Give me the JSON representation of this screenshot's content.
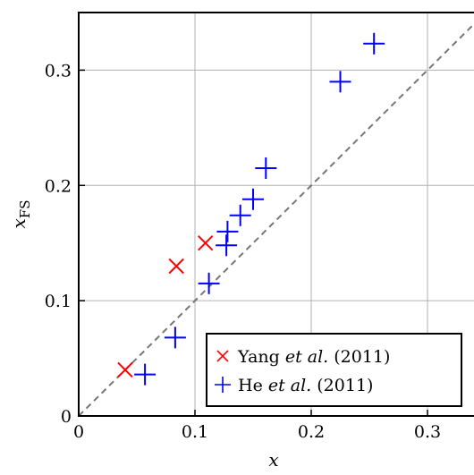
{
  "chart_data": {
    "type": "scatter",
    "xlabel": "x",
    "ylabel_main": "x",
    "ylabel_sub": "FS",
    "xlim": [
      0,
      0.34
    ],
    "ylim": [
      0,
      0.35
    ],
    "x_ticks": [
      {
        "value": 0,
        "label": "0"
      },
      {
        "value": 0.1,
        "label": "0.1"
      },
      {
        "value": 0.2,
        "label": "0.2"
      },
      {
        "value": 0.3,
        "label": "0.3"
      }
    ],
    "y_ticks": [
      {
        "value": 0,
        "label": "0"
      },
      {
        "value": 0.1,
        "label": "0.1"
      },
      {
        "value": 0.2,
        "label": "0.2"
      },
      {
        "value": 0.3,
        "label": "0.3"
      }
    ],
    "grid": true,
    "reference_line": {
      "style": "dashed",
      "color": "#777777",
      "slope": 1
    },
    "legend_position": "bottom-right",
    "series": [
      {
        "name_prefix": "Yang ",
        "name_italic": "et al.",
        "name_suffix": " (2011)",
        "marker": "x",
        "color": "#ff0000",
        "points": [
          {
            "x": 0.04,
            "y": 0.04
          },
          {
            "x": 0.084,
            "y": 0.13
          },
          {
            "x": 0.109,
            "y": 0.15
          }
        ]
      },
      {
        "name_prefix": "He ",
        "name_italic": "et al.",
        "name_suffix": " (2011)",
        "marker": "+",
        "color": "#0000ff",
        "points": [
          {
            "x": 0.057,
            "y": 0.036
          },
          {
            "x": 0.083,
            "y": 0.068
          },
          {
            "x": 0.112,
            "y": 0.115
          },
          {
            "x": 0.127,
            "y": 0.148
          },
          {
            "x": 0.128,
            "y": 0.16
          },
          {
            "x": 0.139,
            "y": 0.174
          },
          {
            "x": 0.15,
            "y": 0.188
          },
          {
            "x": 0.161,
            "y": 0.215
          },
          {
            "x": 0.225,
            "y": 0.29
          },
          {
            "x": 0.254,
            "y": 0.323
          }
        ]
      }
    ]
  }
}
